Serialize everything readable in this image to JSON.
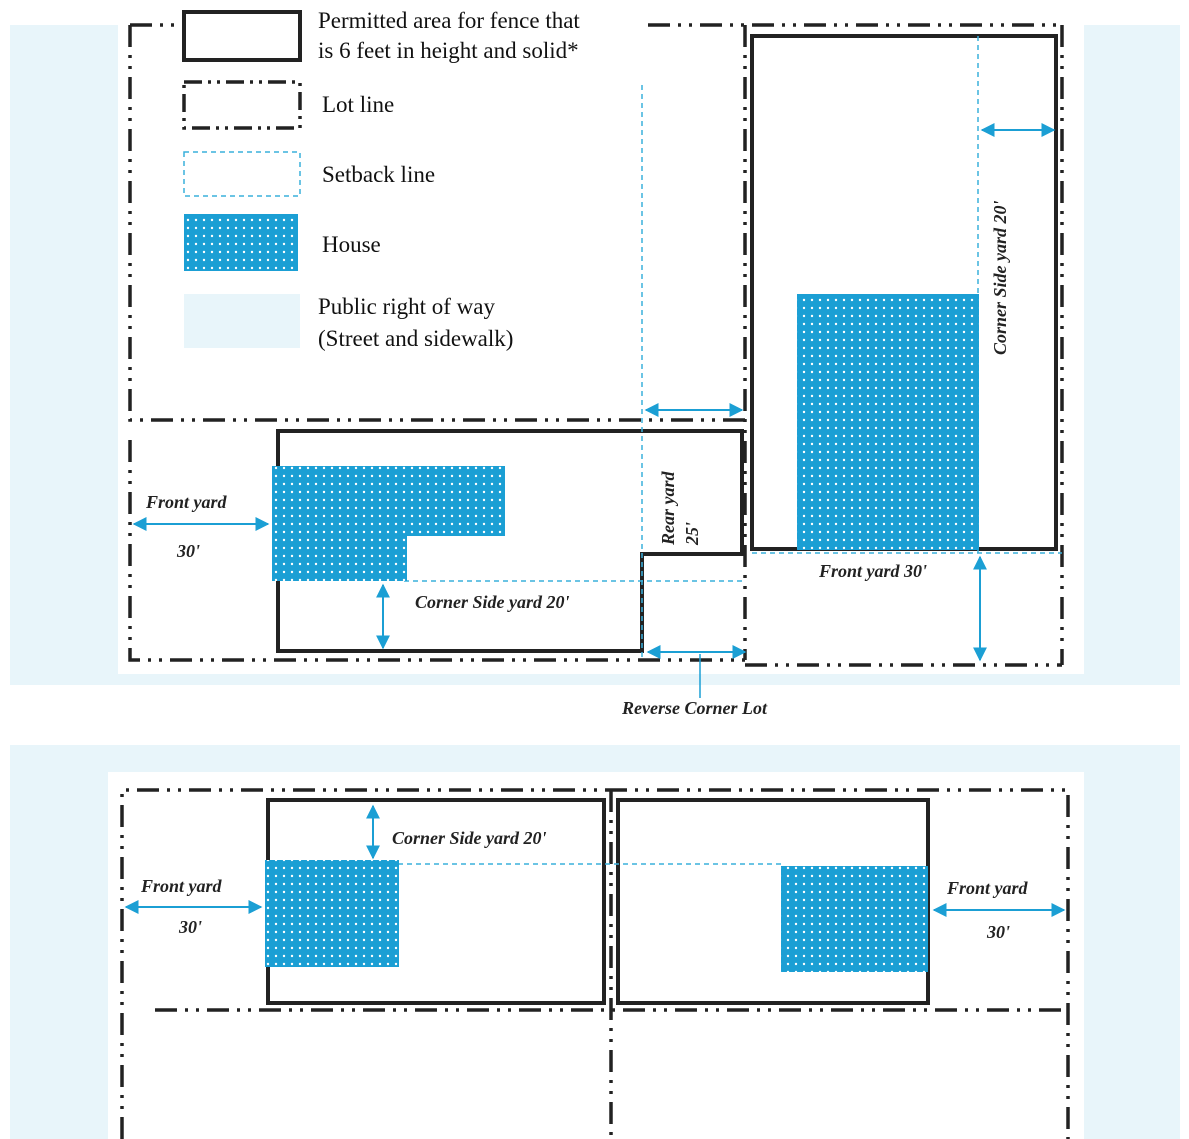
{
  "colors": {
    "row": "#e8f5fa",
    "house": "#1b9fd4",
    "setback": "#3ab0dc",
    "arrow": "#1b9fd4",
    "line": "#222222"
  },
  "legend": {
    "fence_line1": "Permitted area for fence that",
    "fence_line2": "is 6 feet in height and solid*",
    "lot_line": "Lot line",
    "setback_line": "Setback line",
    "house": "House",
    "row_line1": "Public right of way",
    "row_line2": "(Street and sidewalk)"
  },
  "diagram1": {
    "front_yard": "Front yard",
    "front_yard_dist": "30'",
    "corner_side_yard": "Corner Side yard 20'",
    "rear_yard": "Rear yard",
    "rear_yard_dist": "25'",
    "right_corner_side_yard": "Corner  Side yard 20'",
    "right_front_yard": "Front yard 30'",
    "caption": "Reverse Corner Lot"
  },
  "diagram2": {
    "corner_side_yard": "Corner Side yard 20'",
    "left_front_yard": "Front yard",
    "left_front_yard_dist": "30'",
    "right_front_yard": "Front yard",
    "right_front_yard_dist": "30'"
  }
}
